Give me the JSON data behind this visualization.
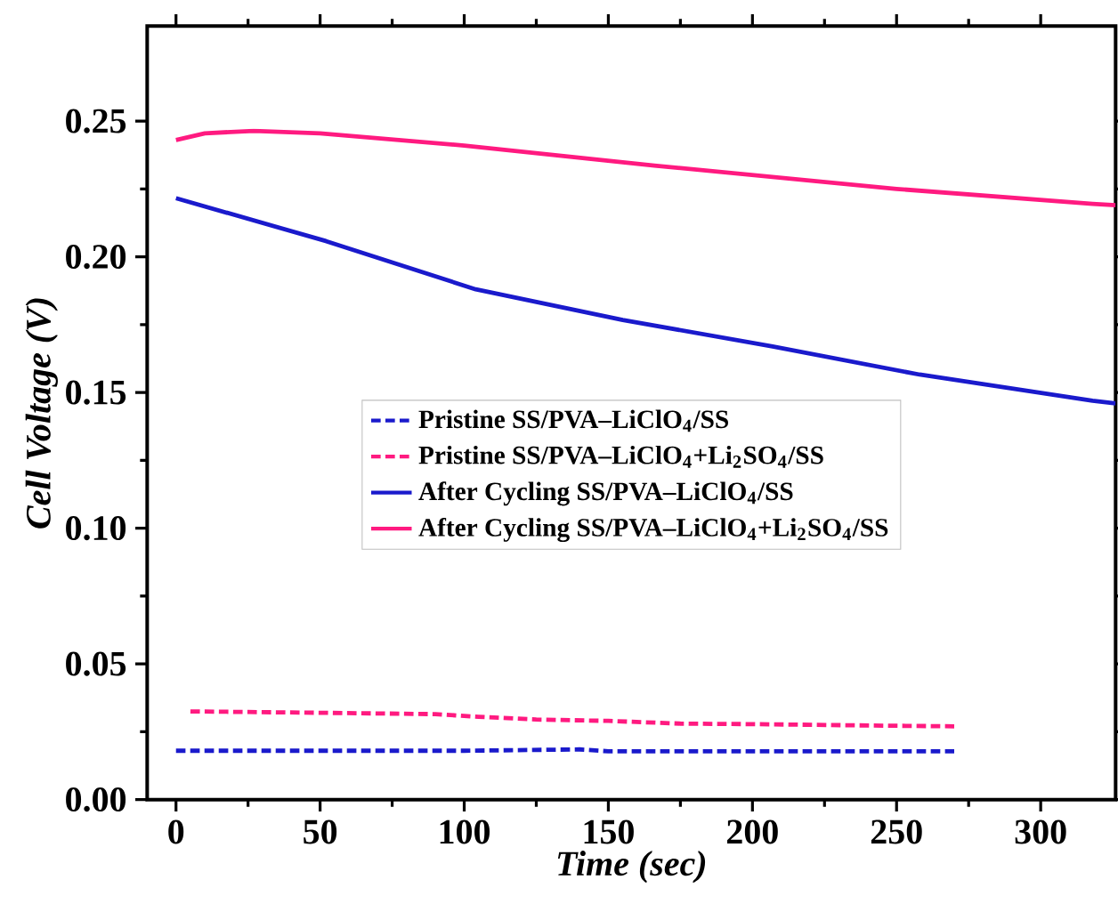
{
  "chart_data": {
    "type": "line",
    "xlabel": "Time (sec)",
    "ylabel": "Cell Voltage (V)",
    "xlim": [
      -10,
      326
    ],
    "ylim": [
      0,
      0.285
    ],
    "xticks": [
      0,
      50,
      100,
      150,
      200,
      250,
      300
    ],
    "yticks": [
      {
        "value": 0,
        "label": "0.00"
      },
      {
        "value": 0.05,
        "label": "0.05"
      },
      {
        "value": 0.1,
        "label": "0.10"
      },
      {
        "value": 0.15,
        "label": "0.15"
      },
      {
        "value": 0.2,
        "label": "0.20"
      },
      {
        "value": 0.25,
        "label": "0.25"
      }
    ],
    "legend": "center",
    "grid": false,
    "series": [
      {
        "name": "Pristine SS/PVA–LiClO$_{4}$/SS",
        "color": "#1a1acc",
        "line_style": "dashed",
        "x": [
          0,
          50,
          100,
          140,
          150,
          200,
          250,
          270
        ],
        "values": [
          0.018,
          0.018,
          0.018,
          0.0185,
          0.0178,
          0.0178,
          0.0178,
          0.0178
        ]
      },
      {
        "name": "Pristine SS/PVA–LiClO$_{4}$+Li$_{2}$SO$_{4}$/SS",
        "color": "#ff1a80",
        "line_style": "dashed",
        "x": [
          5,
          50,
          90,
          105,
          125,
          150,
          175,
          200,
          250,
          270
        ],
        "values": [
          0.0325,
          0.032,
          0.0315,
          0.0305,
          0.0295,
          0.029,
          0.028,
          0.0278,
          0.0272,
          0.027
        ]
      },
      {
        "name": "After Cycling SS/PVA–LiClO$_{4}$/SS",
        "color": "#1a1acc",
        "line_style": "solid",
        "x": [
          0,
          52,
          104,
          155,
          207,
          258,
          318,
          326
        ],
        "values": [
          0.2216,
          0.2058,
          0.188,
          0.1767,
          0.167,
          0.1566,
          0.147,
          0.146
        ]
      },
      {
        "name": "After Cycling SS/PVA–LiClO$_{4}$+Li$_{2}$SO$_{4}$/SS",
        "color": "#ff1a80",
        "line_style": "solid",
        "x": [
          0,
          10,
          27,
          50,
          100,
          166,
          250,
          318,
          326
        ],
        "values": [
          0.243,
          0.2455,
          0.2464,
          0.2455,
          0.241,
          0.2336,
          0.225,
          0.2195,
          0.219
        ]
      }
    ]
  }
}
